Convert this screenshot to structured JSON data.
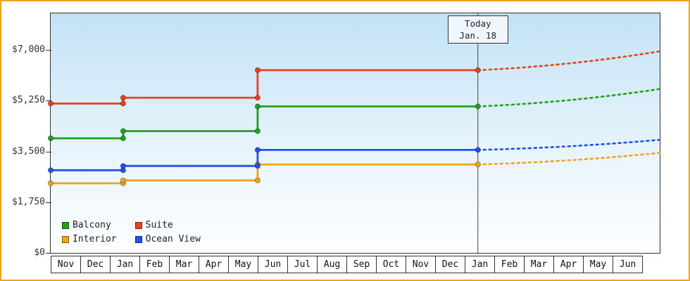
{
  "window": {
    "frame_color": "#f0a21c",
    "background": "#ffffff"
  },
  "chart_data": {
    "type": "line",
    "subtype": "step-with-dashed-forecast",
    "title": "",
    "grid": false,
    "legend_position": "bottom-left-inside",
    "x_tick_labels": [
      "Nov",
      "Dec",
      "Jan",
      "Feb",
      "Mar",
      "Apr",
      "May",
      "Jun",
      "Jul",
      "Aug",
      "Sep",
      "Oct",
      "Nov",
      "Dec",
      "Jan",
      "Feb",
      "Mar",
      "Apr",
      "May",
      "Jun"
    ],
    "y_ticks": [
      {
        "value": 0,
        "label": "$0"
      },
      {
        "value": 1750,
        "label": "$1,750"
      },
      {
        "value": 3500,
        "label": "$3,500"
      },
      {
        "value": 5250,
        "label": "$5,250"
      },
      {
        "value": 7000,
        "label": "$7,000"
      }
    ],
    "ylim": [
      0,
      8260
    ],
    "xlim_months": 20.6,
    "today": {
      "x": 14.45,
      "line1": "Today",
      "line2": "Jan. 18"
    },
    "series": [
      {
        "name": "Balcony",
        "color": "#1ea21e",
        "steps": [
          {
            "x": 0,
            "price": 3950
          },
          {
            "x": 2.45,
            "price": 4200
          },
          {
            "x": 7,
            "price": 5050
          }
        ],
        "solid_end_x": 14.45,
        "forecast_end_price": 5650
      },
      {
        "name": "Suite",
        "color": "#e8411c",
        "steps": [
          {
            "x": 0,
            "price": 5150
          },
          {
            "x": 2.45,
            "price": 5350
          },
          {
            "x": 7,
            "price": 6300
          }
        ],
        "solid_end_x": 14.45,
        "forecast_end_price": 6950
      },
      {
        "name": "Interior",
        "color": "#f3a21c",
        "steps": [
          {
            "x": 0,
            "price": 2400
          },
          {
            "x": 2.45,
            "price": 2500
          },
          {
            "x": 7,
            "price": 3050
          }
        ],
        "solid_end_x": 14.45,
        "forecast_end_price": 3450
      },
      {
        "name": "Ocean View",
        "color": "#2051f0",
        "steps": [
          {
            "x": 0,
            "price": 2850
          },
          {
            "x": 2.45,
            "price": 3000
          },
          {
            "x": 7,
            "price": 3550
          }
        ],
        "solid_end_x": 14.45,
        "forecast_end_price": 3900
      }
    ]
  }
}
